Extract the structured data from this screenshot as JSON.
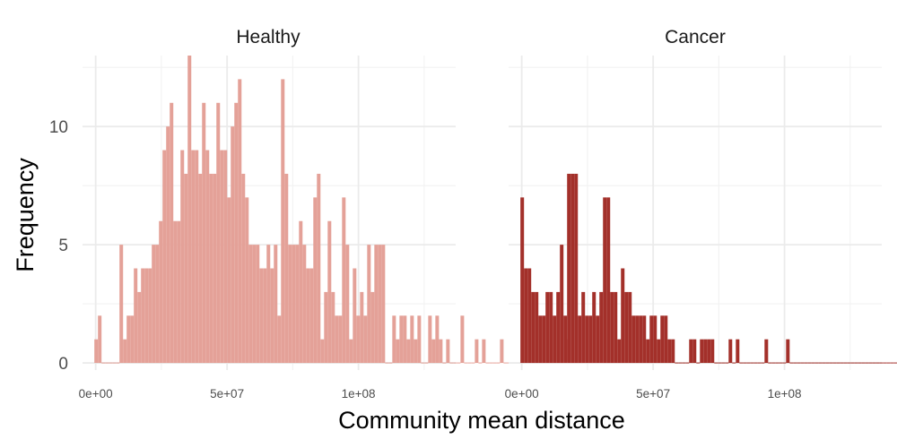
{
  "chart_data": {
    "type": "histogram",
    "xlabel": "Community mean distance",
    "ylabel": "Frequency",
    "xlim": [
      -5000000,
      137000000
    ],
    "ylim": [
      -0.3,
      13.0
    ],
    "x_ticks": [
      {
        "value": 0,
        "label": "0e+00"
      },
      {
        "value": 50000000,
        "label": "5e+07"
      },
      {
        "value": 100000000,
        "label": "1e+08"
      }
    ],
    "y_ticks": [
      {
        "value": 0,
        "label": "0"
      },
      {
        "value": 5,
        "label": "5"
      },
      {
        "value": 10,
        "label": "10"
      }
    ],
    "bin_width": 1366000,
    "grid": true,
    "panels": [
      {
        "name": "Healthy",
        "color": "#e4a198",
        "bin_start": -500000,
        "values": [
          1,
          2,
          0,
          0,
          0,
          0,
          0,
          5,
          1,
          2,
          2,
          4,
          3,
          4,
          4,
          4,
          5,
          5,
          6,
          9,
          10,
          11,
          6,
          6,
          9,
          8,
          13,
          9,
          9,
          8,
          11,
          9,
          8,
          8,
          11,
          9,
          9,
          7,
          10,
          11,
          12,
          8,
          7,
          5,
          5,
          5,
          4,
          4,
          5,
          4,
          5,
          2,
          12,
          8,
          5,
          5,
          5,
          6,
          5,
          4,
          4,
          7,
          8,
          1,
          3,
          6,
          3,
          2,
          2,
          7,
          5,
          1,
          4,
          2,
          3,
          2,
          5,
          3,
          5,
          5,
          5,
          0,
          0,
          2,
          1,
          2,
          2,
          1,
          2,
          1,
          2,
          0,
          0,
          2,
          1,
          2,
          1,
          0,
          1,
          0,
          0,
          0,
          2,
          0,
          0,
          0,
          1,
          0,
          1,
          0,
          0,
          0,
          0,
          1,
          0,
          0,
          0,
          0,
          0,
          0,
          0,
          0,
          0,
          0,
          0,
          0,
          0,
          0,
          0,
          0,
          0,
          1
        ]
      },
      {
        "name": "Cancer",
        "color": "#a3302a",
        "bin_start": -500000,
        "values": [
          7,
          4,
          4,
          3,
          3,
          2,
          2,
          3,
          3,
          2,
          3,
          5,
          2,
          8,
          8,
          8,
          2,
          3,
          2,
          2,
          3,
          2,
          3,
          7,
          7,
          3,
          3,
          1,
          4,
          3,
          3,
          2,
          2,
          2,
          2,
          1,
          2,
          2,
          1,
          2,
          2,
          1,
          1,
          0,
          0,
          0,
          0,
          1,
          1,
          0,
          1,
          1,
          1,
          1,
          0,
          0,
          0,
          0,
          1,
          0,
          1,
          0,
          0,
          0,
          0,
          0,
          0,
          0,
          1,
          0,
          0,
          0,
          0,
          0,
          1,
          0,
          0,
          0,
          0,
          0,
          0,
          0,
          0,
          0,
          0,
          0,
          0,
          0,
          0,
          0,
          0,
          0,
          0,
          0,
          0,
          0,
          0,
          0,
          0,
          0,
          0,
          0,
          0,
          0,
          0,
          0,
          0,
          0,
          0,
          0,
          0,
          0,
          0,
          0,
          0,
          0,
          0,
          0,
          0,
          0,
          0,
          0,
          0,
          0,
          0,
          0,
          0,
          0,
          0,
          0,
          0,
          0,
          0,
          0,
          0,
          0,
          0,
          0,
          0,
          0
        ]
      }
    ]
  }
}
